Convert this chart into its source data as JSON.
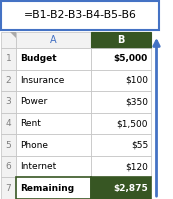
{
  "formula": "=B1-B2-B3-B4-B5-B6",
  "col_headers": [
    "A",
    "B"
  ],
  "rows": [
    {
      "num": 1,
      "label": "Budget",
      "value": "$5,000",
      "bold": true
    },
    {
      "num": 2,
      "label": "Insurance",
      "value": "$100",
      "bold": false
    },
    {
      "num": 3,
      "label": "Power",
      "value": "$350",
      "bold": false
    },
    {
      "num": 4,
      "label": "Rent",
      "value": "$1,500",
      "bold": false
    },
    {
      "num": 5,
      "label": "Phone",
      "value": "$55",
      "bold": false
    },
    {
      "num": 6,
      "label": "Internet",
      "value": "$120",
      "bold": false
    },
    {
      "num": 7,
      "label": "Remaining",
      "value": "$2,875",
      "bold": true
    }
  ],
  "formula_box_color": "#ffffff",
  "formula_box_border": "#4472C4",
  "formula_text_color": "#000000",
  "header_text_color": "#4472C4",
  "row_num_color": "#808080",
  "grid_color": "#c0c0c0",
  "col_b_header_bg": "#375623",
  "col_b_header_text": "#ffffff",
  "row7_bg": "#375623",
  "row7_text": "#ffffff",
  "row7_border": "#375623",
  "normal_bg": "#ffffff",
  "normal_text": "#000000",
  "header_bg": "#f2f2f2",
  "arrow_color": "#4472C4",
  "figsize": [
    1.73,
    1.99
  ],
  "dpi": 100
}
